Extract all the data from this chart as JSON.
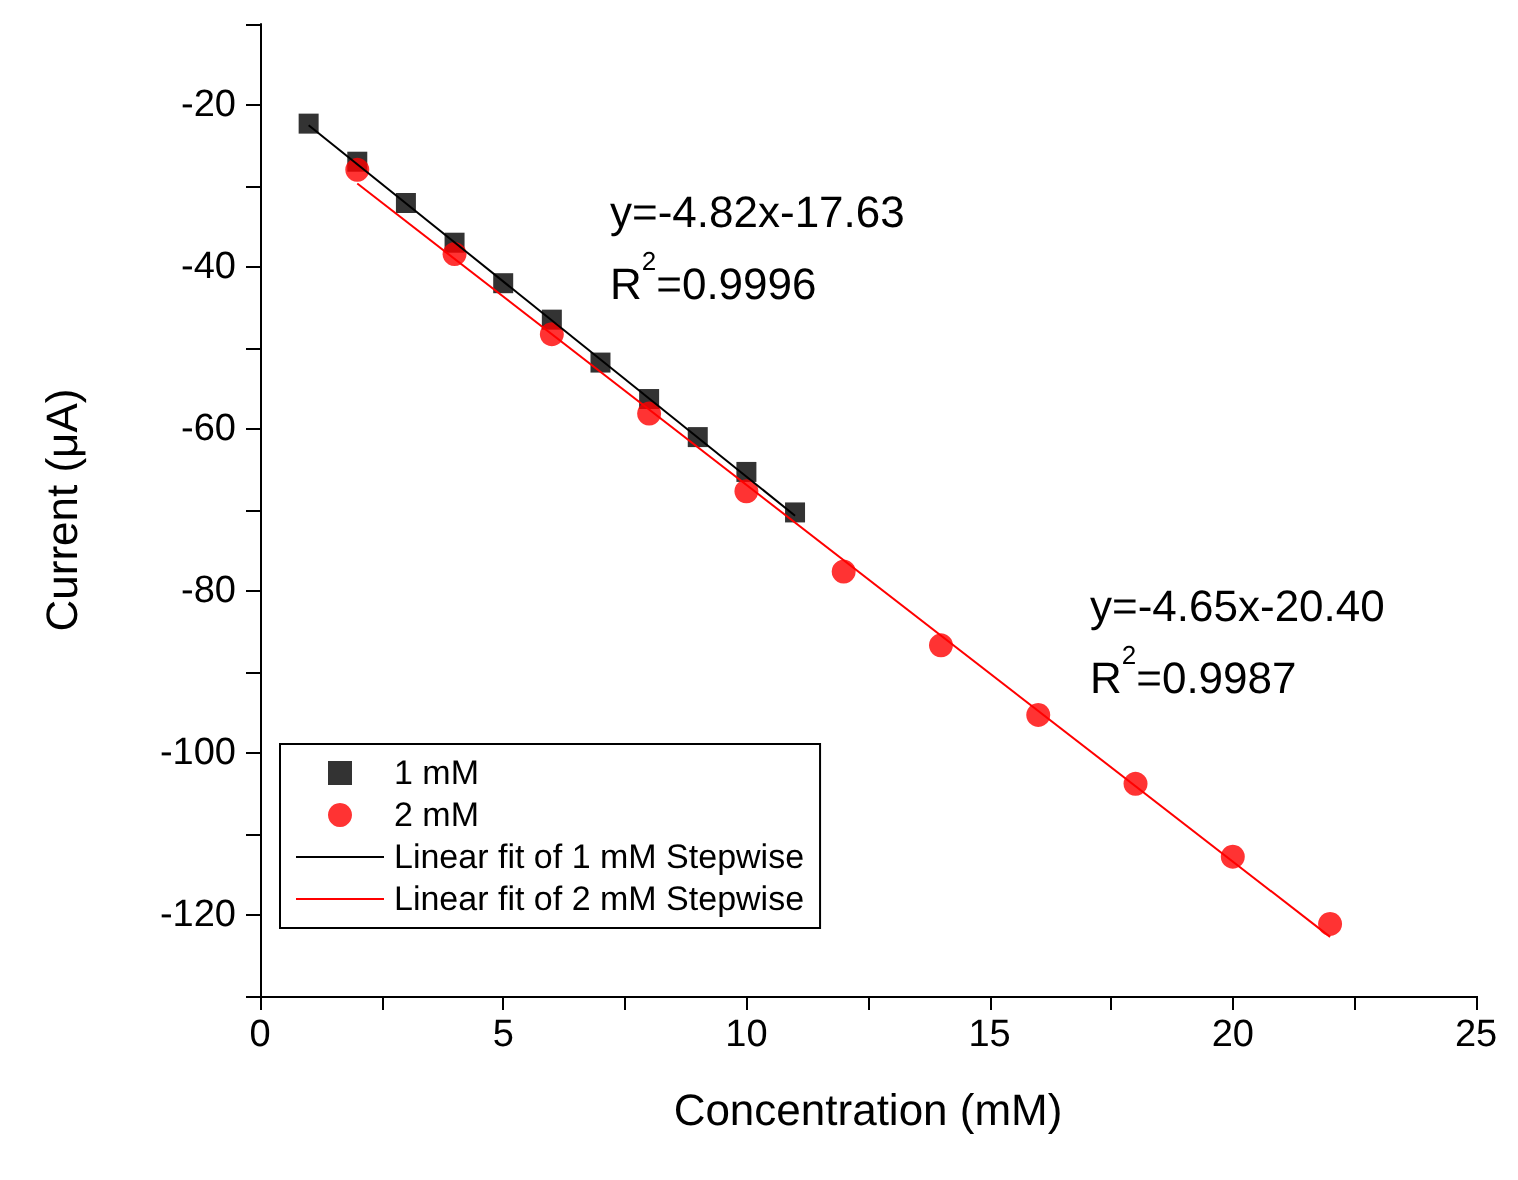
{
  "chart_data": {
    "type": "scatter",
    "xlabel": "Concentration (mM)",
    "ylabel": "Current (μA)",
    "xlim": [
      0,
      25
    ],
    "ylim": [
      -130,
      -10
    ],
    "xticks": [
      0,
      {
        "value": 2.5,
        "label": null
      },
      5,
      {
        "value": 7.5,
        "label": null
      },
      10,
      {
        "value": 12.5,
        "label": null
      },
      15,
      {
        "value": 17.5,
        "label": null
      },
      20,
      {
        "value": 22.5,
        "label": null
      },
      25
    ],
    "yticks": [
      {
        "value": -130,
        "label": null
      },
      -120,
      {
        "value": -110,
        "label": null
      },
      -100,
      {
        "value": -90,
        "label": null
      },
      -80,
      {
        "value": -70,
        "label": null
      },
      -60,
      {
        "value": -50,
        "label": null
      },
      -40,
      {
        "value": -30,
        "label": null
      },
      -20,
      {
        "value": -10,
        "label": null
      }
    ],
    "grid": false,
    "legend": "bottom left",
    "series": [
      {
        "name": "1 mM",
        "marker": "square",
        "color": "#000000",
        "x": [
          1,
          2,
          3,
          4,
          5,
          6,
          7,
          8,
          9,
          10,
          11
        ],
        "values": [
          -22.3,
          -27,
          -32.1,
          -37,
          -42,
          -46.5,
          -51.8,
          -56.3,
          -61,
          -65.3,
          -70.3
        ]
      },
      {
        "name": "2 mM",
        "marker": "circle",
        "color": "#ff0000",
        "x": [
          2,
          4,
          6,
          8,
          10,
          12,
          14,
          16,
          18,
          20,
          22
        ],
        "values": [
          -28,
          -38.4,
          -48.3,
          -58.1,
          -67.7,
          -77.6,
          -86.7,
          -95.3,
          -103.8,
          -112.8,
          -121.1
        ]
      },
      {
        "name": "Linear fit of 1 mM Stepwise",
        "type": "line",
        "marker": "none",
        "color": "#000000",
        "x": [
          1,
          11
        ],
        "values": [
          -22.5,
          -70.7
        ]
      },
      {
        "name": "Linear fit of 2 mM Stepwise",
        "type": "line",
        "marker": "none",
        "color": "#ff0000",
        "x": [
          2,
          22
        ],
        "values": [
          -29.7,
          -122.7
        ]
      }
    ],
    "annotations": [
      "y=-4.82x-17.63\nR$^{2}$=0.9996",
      "y=-4.65x-20.40\nR$^{2}$=0.9987"
    ]
  }
}
